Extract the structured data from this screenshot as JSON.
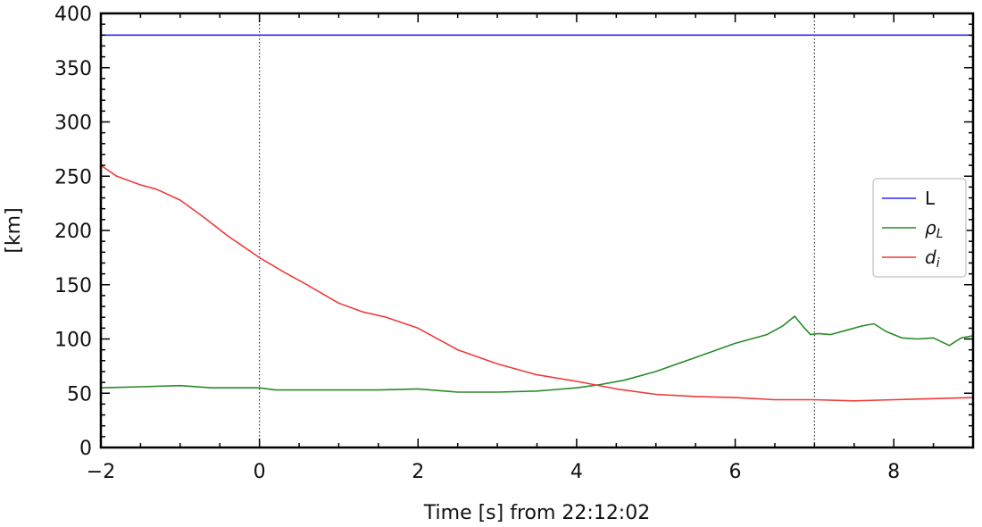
{
  "chart_data": {
    "type": "line",
    "xlabel": "Time [s] from 22:12:02",
    "ylabel": "[km]",
    "xlim": [
      -2,
      9
    ],
    "ylim": [
      0,
      400
    ],
    "xticks": [
      -2,
      0,
      2,
      4,
      6,
      8
    ],
    "xtick_labels": [
      "−2",
      "0",
      "2",
      "4",
      "6",
      "8"
    ],
    "yticks": [
      0,
      50,
      100,
      150,
      200,
      250,
      300,
      350,
      400
    ],
    "ytick_labels": [
      "0",
      "50",
      "100",
      "150",
      "200",
      "250",
      "300",
      "350",
      "400"
    ],
    "vlines": [
      0,
      7
    ],
    "grid": false,
    "legend_placement": "center-right",
    "series": [
      {
        "key": "L",
        "name": "L",
        "color": "#2a2aee",
        "x": [
          -2,
          9
        ],
        "y": [
          380,
          380
        ]
      },
      {
        "key": "rho",
        "name": "ρL",
        "legend_main": "ρ",
        "legend_sub": "L",
        "color": "#2a8a2a",
        "x": [
          -2,
          -1.5,
          -1,
          -0.6,
          -0.3,
          0,
          0.2,
          0.5,
          1,
          1.5,
          2,
          2.5,
          3,
          3.5,
          4,
          4.3,
          4.6,
          5,
          5.5,
          6,
          6.2,
          6.4,
          6.6,
          6.75,
          6.85,
          6.95,
          7.05,
          7.2,
          7.4,
          7.6,
          7.75,
          7.9,
          8.1,
          8.3,
          8.5,
          8.7,
          8.85,
          9
        ],
        "y": [
          55,
          56,
          57,
          55,
          55,
          55,
          53,
          53,
          53,
          53,
          54,
          51,
          51,
          52,
          55,
          58,
          62,
          70,
          83,
          96,
          100,
          104,
          112,
          121,
          112,
          104,
          105,
          104,
          108,
          112,
          114,
          107,
          101,
          100,
          101,
          94,
          101,
          103
        ]
      },
      {
        "key": "di",
        "name": "di",
        "legend_main": "d",
        "legend_sub": "i",
        "color": "#ee3a3a",
        "x": [
          -2,
          -1.8,
          -1.5,
          -1.3,
          -1,
          -0.7,
          -0.4,
          -0.2,
          0,
          0.3,
          0.6,
          1,
          1.3,
          1.6,
          2,
          2.5,
          3,
          3.5,
          4,
          4.5,
          5,
          5.5,
          6,
          6.5,
          7,
          7.5,
          8,
          8.5,
          9
        ],
        "y": [
          260,
          250,
          242,
          238,
          228,
          212,
          195,
          185,
          175,
          162,
          150,
          133,
          125,
          120,
          110,
          90,
          77,
          67,
          61,
          54,
          49,
          47,
          46,
          44,
          44,
          43,
          44,
          45,
          46
        ]
      }
    ]
  }
}
